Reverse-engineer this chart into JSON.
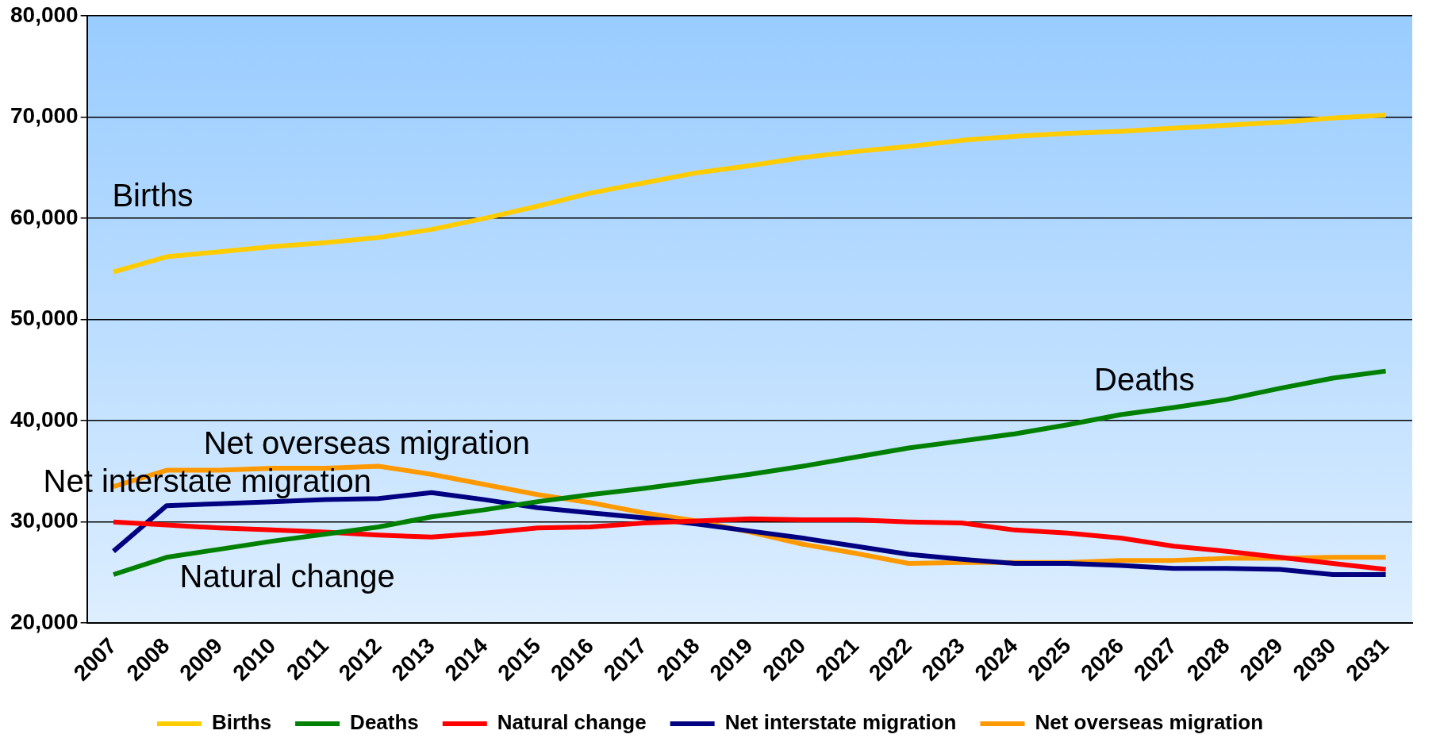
{
  "chart_data": {
    "type": "line",
    "categories": [
      "2007",
      "2008",
      "2009",
      "2010",
      "2011",
      "2012",
      "2013",
      "2014",
      "2015",
      "2016",
      "2017",
      "2018",
      "2019",
      "2020",
      "2021",
      "2022",
      "2023",
      "2024",
      "2025",
      "2026",
      "2027",
      "2028",
      "2029",
      "2030",
      "2031"
    ],
    "series": [
      {
        "name": "Births",
        "color": "#ffcc00",
        "values": [
          54700,
          56200,
          56700,
          57200,
          57600,
          58100,
          58900,
          60000,
          61200,
          62500,
          63500,
          64500,
          65200,
          66000,
          66600,
          67100,
          67700,
          68100,
          68400,
          68600,
          68900,
          69200,
          69500,
          69900,
          70200
        ]
      },
      {
        "name": "Deaths",
        "color": "#008000",
        "values": [
          24800,
          26500,
          27300,
          28100,
          28800,
          29500,
          30500,
          31200,
          32000,
          32700,
          33300,
          34000,
          34700,
          35500,
          36400,
          37300,
          38000,
          38700,
          39600,
          40600,
          41300,
          42100,
          43200,
          44200,
          44900
        ]
      },
      {
        "name": "Natural change",
        "color": "#ff0000",
        "values": [
          30000,
          29700,
          29400,
          29200,
          29000,
          28700,
          28500,
          28900,
          29400,
          29500,
          29900,
          30100,
          30300,
          30200,
          30200,
          30000,
          29900,
          29200,
          28900,
          28400,
          27600,
          27100,
          26500,
          25900,
          25300
        ]
      },
      {
        "name": "Net interstate migration",
        "color": "#000080",
        "values": [
          27100,
          31600,
          31800,
          32000,
          32200,
          32300,
          32900,
          32200,
          31400,
          30900,
          30400,
          29800,
          29100,
          28400,
          27600,
          26800,
          26300,
          25900,
          25900,
          25700,
          25400,
          25400,
          25300,
          24800,
          24800
        ]
      },
      {
        "name": "Net overseas migration",
        "color": "#ff9900",
        "values": [
          33500,
          35100,
          35100,
          35300,
          35300,
          35500,
          34700,
          33700,
          32700,
          31900,
          30900,
          30100,
          29000,
          27800,
          26900,
          25900,
          26000,
          26000,
          26000,
          26200,
          26200,
          26400,
          26400,
          26500,
          26500
        ]
      }
    ],
    "ylim": [
      20000,
      80000
    ],
    "yticks": [
      {
        "value": 20000,
        "label": "20,000"
      },
      {
        "value": 30000,
        "label": "30,000"
      },
      {
        "value": 40000,
        "label": "40,000"
      },
      {
        "value": 50000,
        "label": "50,000"
      },
      {
        "value": 60000,
        "label": "60,000"
      },
      {
        "value": 70000,
        "label": "70,000"
      },
      {
        "value": 80000,
        "label": "80,000"
      }
    ],
    "grid": "y",
    "legend": "bottom",
    "marker": "none",
    "line_style": "solid"
  }
}
